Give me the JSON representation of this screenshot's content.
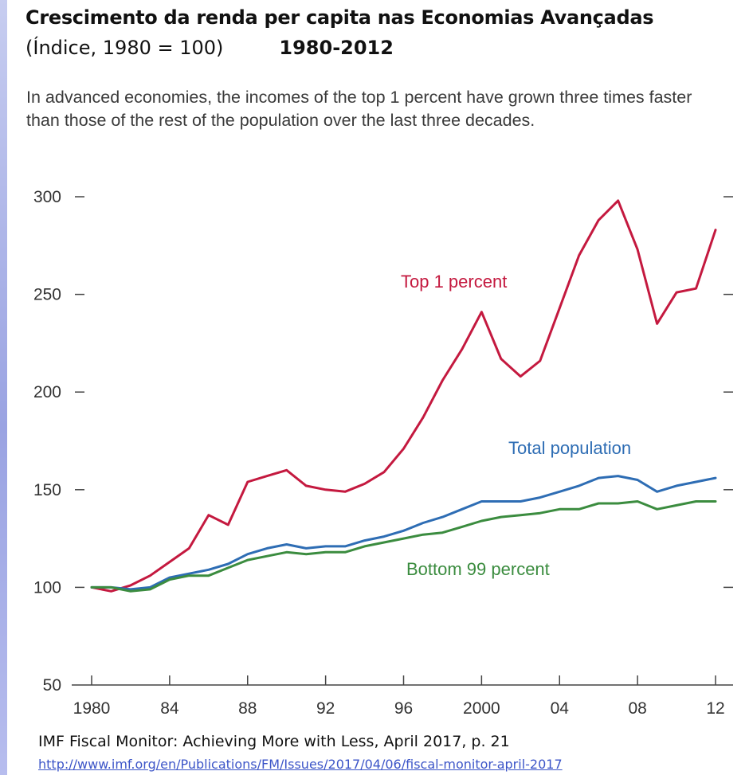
{
  "header": {
    "title": "Crescimento da renda per capita nas Economias Avançadas",
    "subtitle_index": "(Índice, 1980 = 100)",
    "subtitle_years": "1980-2012"
  },
  "description": "In advanced economies, the incomes of the top 1 percent have grown three times faster than those of the rest of the population over the last three decades.",
  "source": {
    "citation": "IMF Fiscal Monitor: Achieving More with Less, April 2017, p. 21",
    "url": "http://www.imf.org/en/Publications/FM/Issues/2017/04/06/fiscal-monitor-april-2017"
  },
  "chart_data": {
    "type": "line",
    "title": "Crescimento da renda per capita nas Economias Avançadas",
    "xlabel": "",
    "ylabel": "",
    "xlim": [
      1980,
      2012
    ],
    "ylim": [
      50,
      300
    ],
    "y_ticks": [
      50,
      100,
      150,
      200,
      250,
      300
    ],
    "x_ticks": [
      1980,
      1984,
      1988,
      1992,
      1996,
      2000,
      2004,
      2008,
      2012
    ],
    "x_tick_labels": [
      "1980",
      "84",
      "88",
      "92",
      "96",
      "2000",
      "04",
      "08",
      "12"
    ],
    "grid": false,
    "x": [
      1980,
      1981,
      1982,
      1983,
      1984,
      1985,
      1986,
      1987,
      1988,
      1989,
      1990,
      1991,
      1992,
      1993,
      1994,
      1995,
      1996,
      1997,
      1998,
      1999,
      2000,
      2001,
      2002,
      2003,
      2004,
      2005,
      2006,
      2007,
      2008,
      2009,
      2010,
      2011,
      2012
    ],
    "series": [
      {
        "name": "Top 1 percent",
        "color": "#c4193f",
        "values": [
          100,
          98,
          101,
          106,
          113,
          120,
          137,
          132,
          154,
          157,
          160,
          152,
          150,
          149,
          153,
          159,
          171,
          187,
          206,
          222,
          241,
          217,
          208,
          216,
          243,
          270,
          288,
          298,
          273,
          235,
          251,
          253,
          283
        ]
      },
      {
        "name": "Total population",
        "color": "#2e6db4",
        "values": [
          100,
          100,
          99,
          100,
          105,
          107,
          109,
          112,
          117,
          120,
          122,
          120,
          121,
          121,
          124,
          126,
          129,
          133,
          136,
          140,
          144,
          144,
          144,
          146,
          149,
          152,
          156,
          157,
          155,
          149,
          152,
          154,
          156
        ]
      },
      {
        "name": "Bottom 99 percent",
        "color": "#3b8c3f",
        "values": [
          100,
          100,
          98,
          99,
          104,
          106,
          106,
          110,
          114,
          116,
          118,
          117,
          118,
          118,
          121,
          123,
          125,
          127,
          128,
          131,
          134,
          136,
          137,
          138,
          140,
          140,
          143,
          143,
          144,
          140,
          142,
          144,
          144
        ]
      }
    ]
  }
}
